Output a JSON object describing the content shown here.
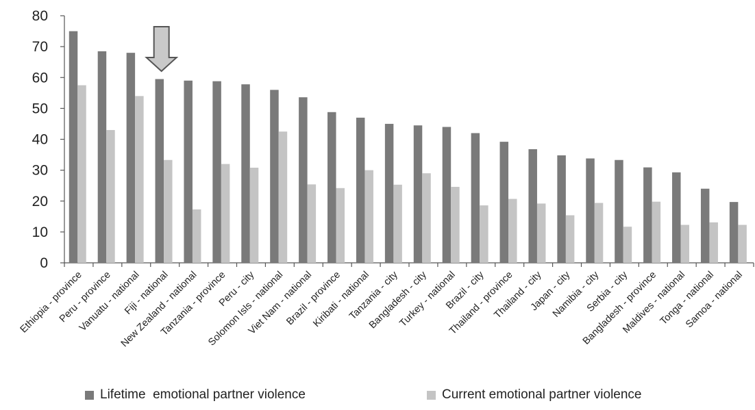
{
  "chart_data": {
    "type": "bar",
    "title": "",
    "xlabel": "",
    "ylabel": "",
    "ylim": [
      0,
      80
    ],
    "yticks": [
      0,
      10,
      20,
      30,
      40,
      50,
      60,
      70,
      80
    ],
    "grid": false,
    "legend_position": "bottom",
    "categories": [
      "Ethiopia - province",
      "Peru - province",
      "Vanuatu - national",
      "Fiji - national",
      "New Zealand - national",
      "Tanzania - province",
      "Peru - city",
      "Solomon Isls - national",
      "Viet Nam - national",
      "Brazil - province",
      "Kiribati - national",
      "Tanzania - city",
      "Bangladesh - city",
      "Turkey - national",
      "Brazil - city",
      "Thailand - province",
      "Thailand - city",
      "Japan - city",
      "Namibia - city",
      "Serbia - city",
      "Bangladesh - province",
      "Maldives - national",
      "Tonga - national",
      "Samoa - national"
    ],
    "series": [
      {
        "name": "Lifetime  emotional partner violence",
        "color": "#7a7a7a",
        "values": [
          75,
          68.5,
          68,
          59.5,
          59,
          58.8,
          57.8,
          56,
          53.6,
          48.8,
          47,
          45,
          44.5,
          44,
          42,
          39.2,
          36.8,
          34.8,
          33.8,
          33.3,
          30.9,
          29.3,
          24,
          19.7
        ]
      },
      {
        "name": "Current emotional partner violence",
        "color": "#c4c4c4",
        "values": [
          57.5,
          43,
          54,
          33.3,
          17.3,
          32,
          30.8,
          42.5,
          25.4,
          24.2,
          30,
          25.3,
          29,
          24.6,
          18.6,
          20.7,
          19.2,
          15.4,
          19.4,
          11.7,
          19.8,
          12.3,
          13.1,
          12.3
        ]
      }
    ],
    "annotation": {
      "type": "arrow-down",
      "category": "Fiji - national"
    }
  }
}
